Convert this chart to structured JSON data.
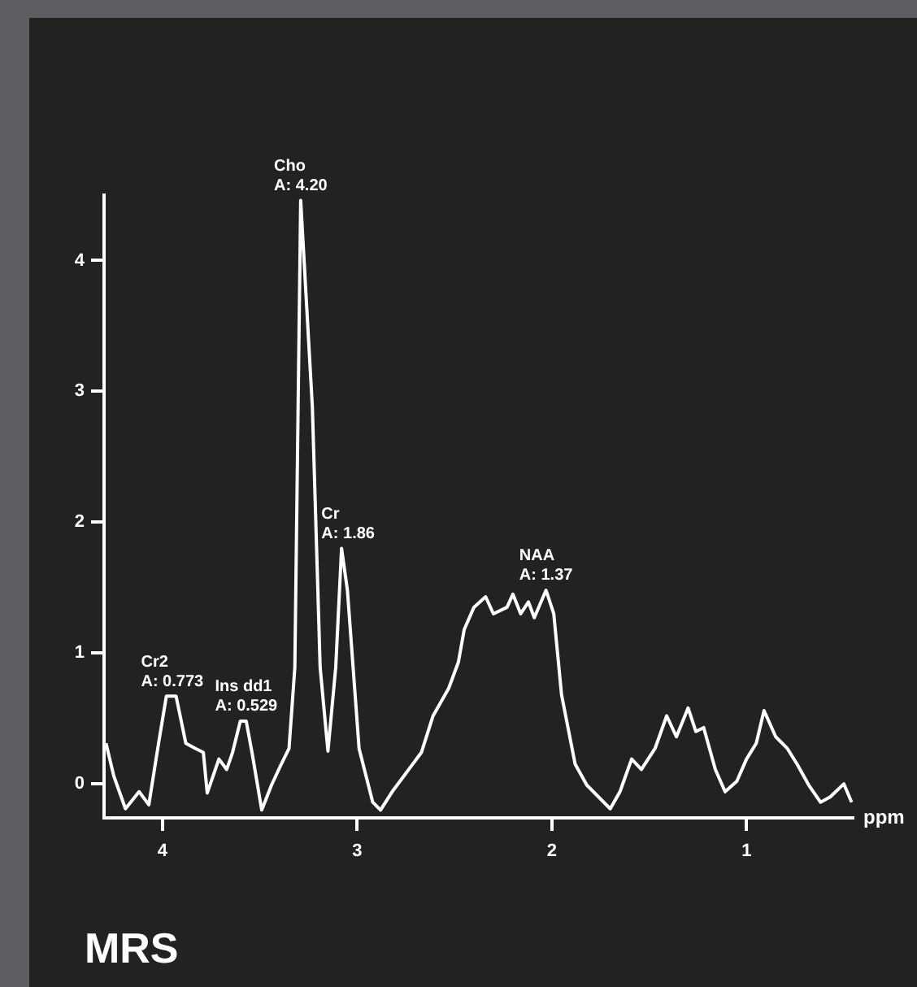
{
  "chart_data": {
    "type": "line",
    "xlabel": "ppm",
    "color": "#ffffff",
    "marker": "none",
    "line_style": "solid",
    "grid": false,
    "legend": false,
    "xlim": [
      4.3,
      0.45
    ],
    "xticks": [
      4,
      3,
      2,
      1
    ],
    "ylim": [
      -0.26,
      4.5
    ],
    "yticks": [
      0,
      1,
      2,
      3,
      4
    ],
    "x": [
      4.29,
      4.25,
      4.19,
      4.12,
      4.07,
      4.02,
      3.98,
      3.93,
      3.88,
      3.83,
      3.79,
      3.77,
      3.71,
      3.67,
      3.64,
      3.6,
      3.57,
      3.54,
      3.49,
      3.44,
      3.39,
      3.35,
      3.32,
      3.29,
      3.23,
      3.19,
      3.15,
      3.11,
      3.08,
      3.05,
      2.99,
      2.92,
      2.88,
      2.82,
      2.76,
      2.67,
      2.61,
      2.53,
      2.48,
      2.45,
      2.4,
      2.34,
      2.3,
      2.23,
      2.2,
      2.16,
      2.12,
      2.09,
      2.03,
      1.99,
      1.95,
      1.88,
      1.82,
      1.76,
      1.7,
      1.65,
      1.59,
      1.54,
      1.47,
      1.41,
      1.36,
      1.3,
      1.26,
      1.22,
      1.16,
      1.11,
      1.05,
      1.0,
      0.95,
      0.91,
      0.85,
      0.79,
      0.74,
      0.68,
      0.62,
      0.57,
      0.5,
      0.46
    ],
    "values": [
      0.31,
      0.06,
      -0.19,
      -0.06,
      -0.16,
      0.31,
      0.67,
      0.67,
      0.31,
      0.27,
      0.24,
      -0.07,
      0.19,
      0.11,
      0.24,
      0.48,
      0.48,
      0.24,
      -0.2,
      -0.01,
      0.15,
      0.27,
      0.89,
      4.46,
      2.88,
      0.89,
      0.25,
      0.89,
      1.8,
      1.48,
      0.27,
      -0.14,
      -0.2,
      -0.06,
      0.06,
      0.24,
      0.52,
      0.73,
      0.93,
      1.18,
      1.35,
      1.43,
      1.3,
      1.35,
      1.45,
      1.3,
      1.39,
      1.27,
      1.48,
      1.3,
      0.68,
      0.15,
      -0.01,
      -0.1,
      -0.19,
      -0.06,
      0.19,
      0.11,
      0.27,
      0.52,
      0.36,
      0.58,
      0.4,
      0.43,
      0.11,
      -0.06,
      0.02,
      0.19,
      0.31,
      0.56,
      0.36,
      0.27,
      0.15,
      -0.01,
      -0.14,
      -0.1,
      0.0,
      -0.14
    ],
    "annotations": [
      {
        "text": "Cr2\nA: 0.773",
        "x": 3.95,
        "y": 0.67
      },
      {
        "text": "Ins dd1\nA: 0.529",
        "x": 3.57,
        "y": 0.48
      },
      {
        "text": "Cho\nA: 4.20",
        "x": 3.29,
        "y": 4.46
      },
      {
        "text": "Cr\nA: 1.86",
        "x": 3.08,
        "y": 1.8
      },
      {
        "text": "NAA\nA: 1.37",
        "x": 2.03,
        "y": 1.48
      },
      "MRS"
    ]
  }
}
